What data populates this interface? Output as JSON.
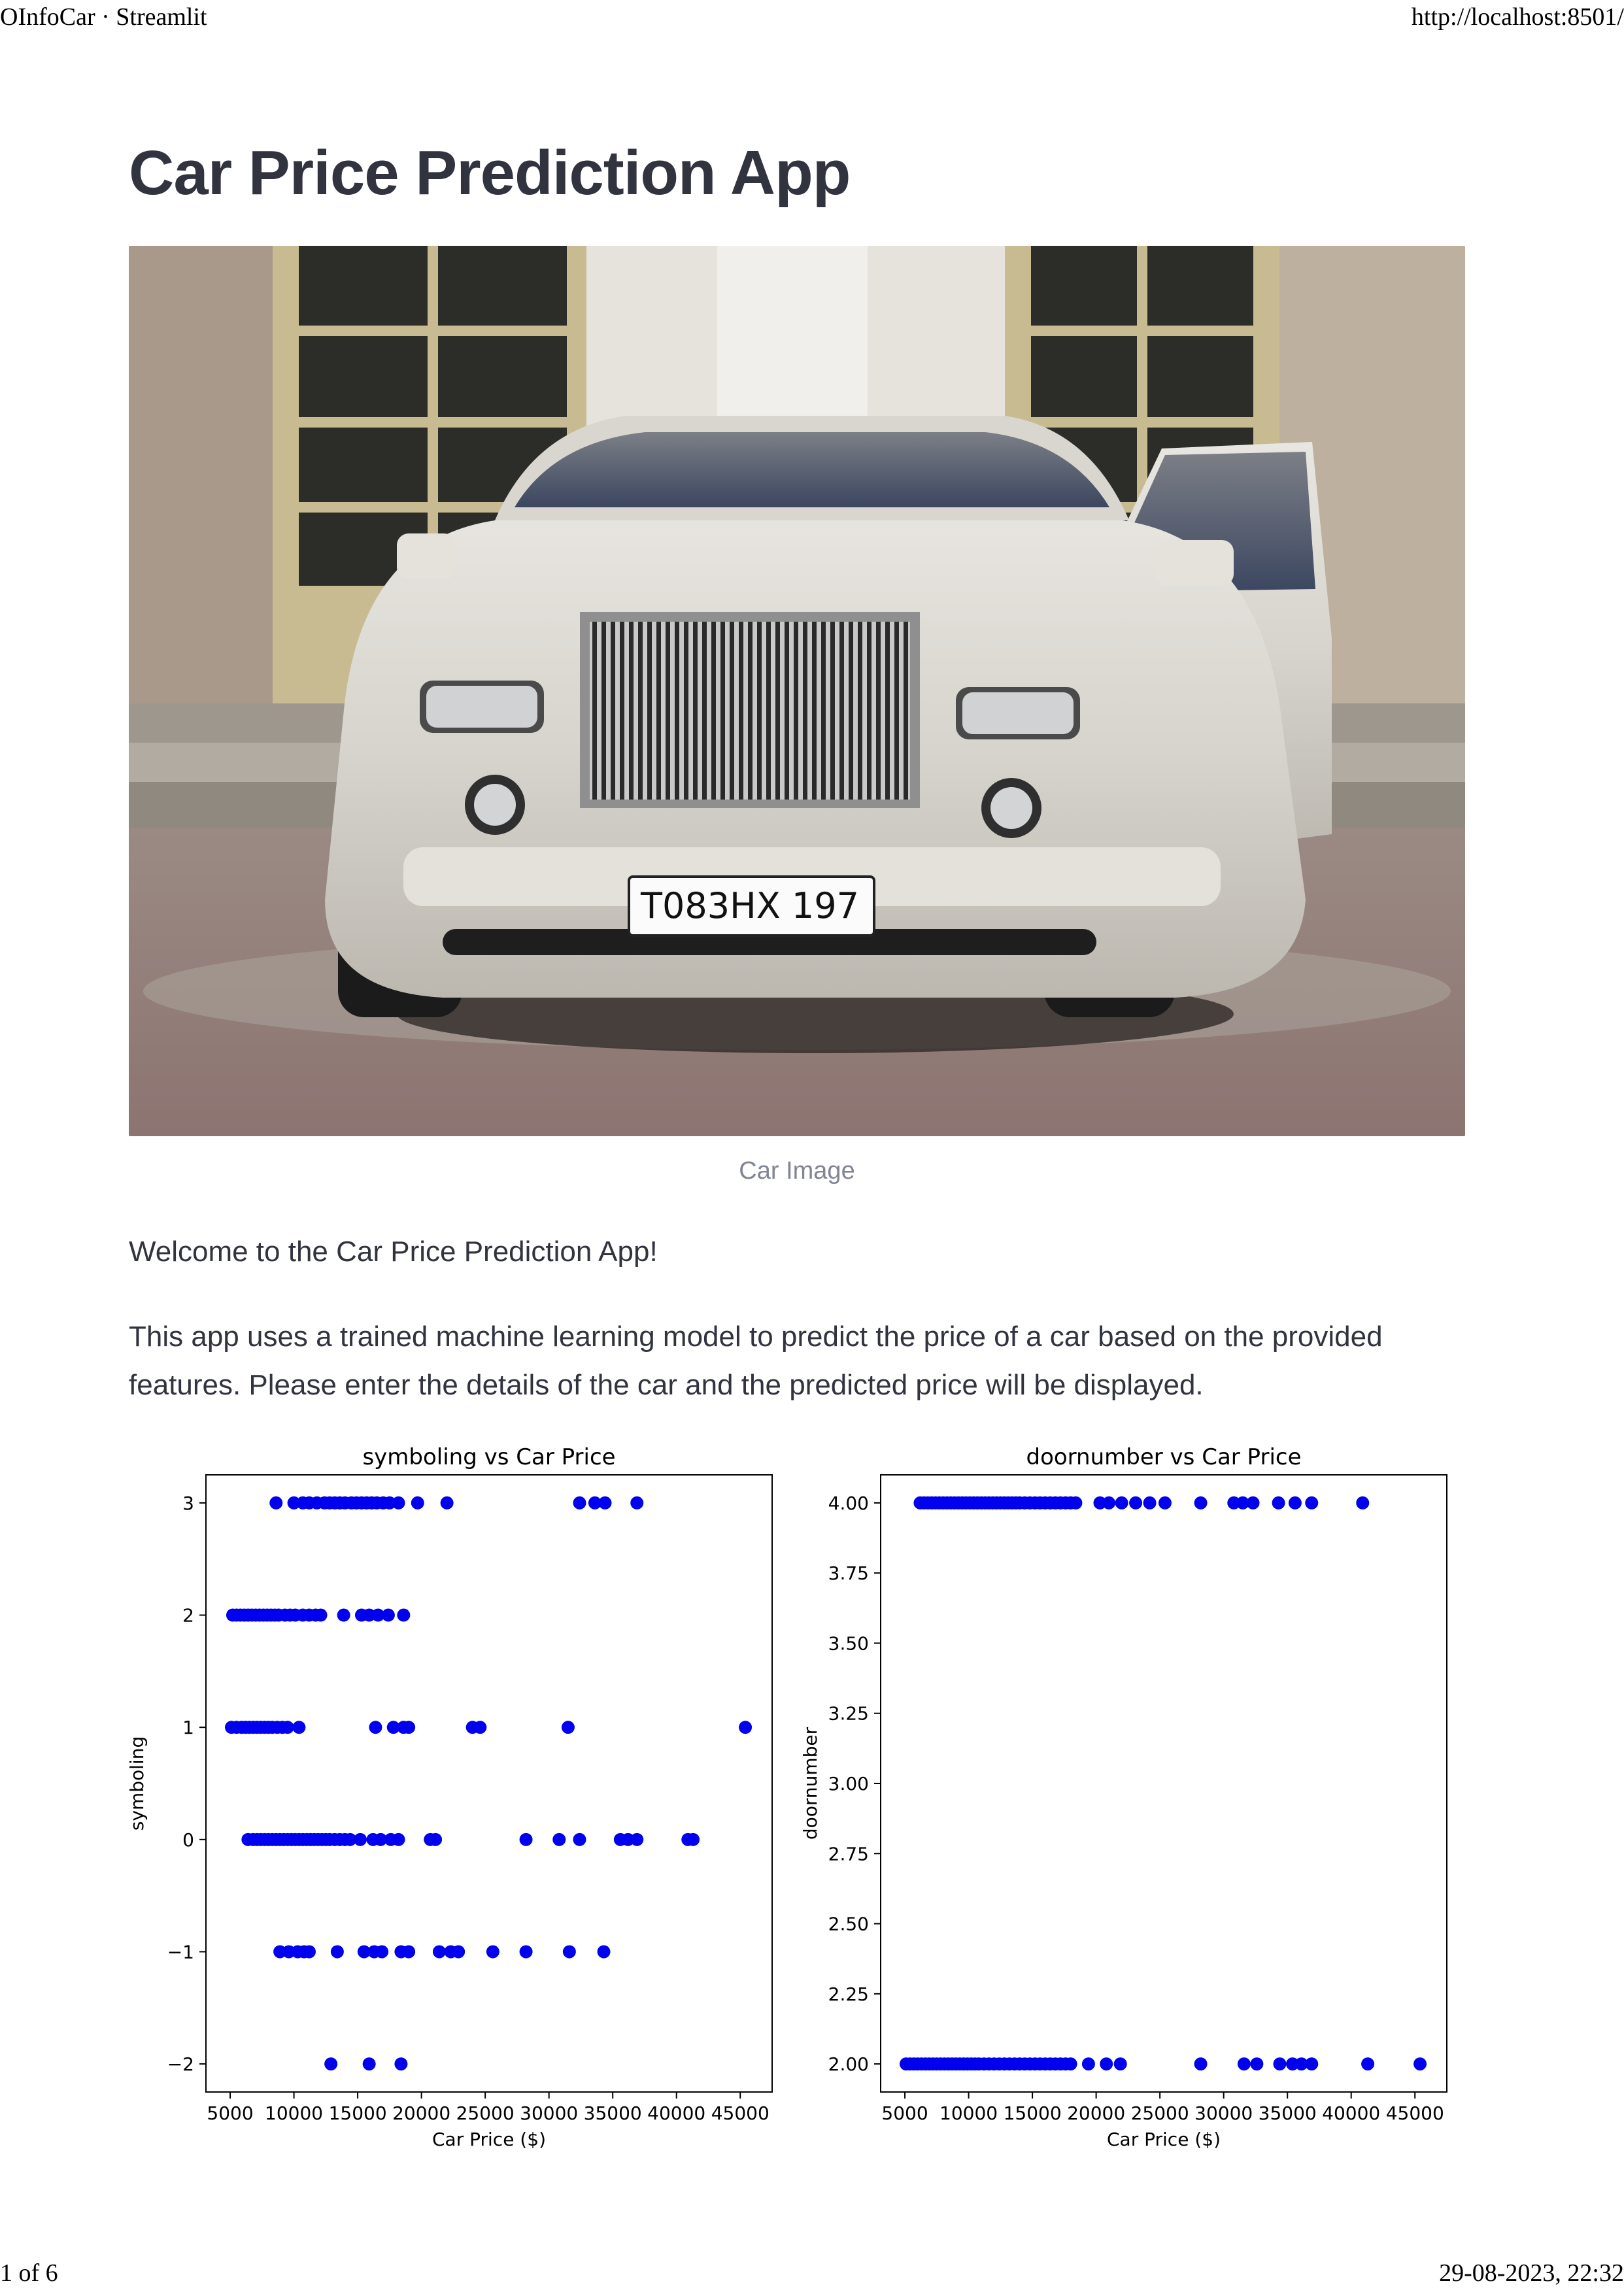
{
  "print_header": {
    "title": "OInfoCar · Streamlit",
    "url": "http://localhost:8501/"
  },
  "print_footer": {
    "page": "1 of 6",
    "datetime": "29-08-2023, 22:32"
  },
  "app": {
    "title": "Car Price Prediction App",
    "image_caption": "Car Image",
    "license_plate": "Т083НХ 197",
    "welcome": "Welcome to the Car Price Prediction App!",
    "description": "This app uses a trained machine learning model to predict the price of a car based on the provided features. Please enter the details of the car and the predicted price will be displayed."
  },
  "colors": {
    "point": "#0000ee",
    "text": "#31333f",
    "caption": "#808495"
  },
  "chart_data": [
    {
      "type": "scatter",
      "title": "symboling vs Car Price",
      "xlabel": "Car Price ($)",
      "ylabel": "symboling",
      "xlim": [
        3100,
        47500
      ],
      "ylim": [
        -2.25,
        3.25
      ],
      "xticks": [
        5000,
        10000,
        15000,
        20000,
        25000,
        30000,
        35000,
        40000,
        45000
      ],
      "xticklabels": [
        "5000",
        "10000",
        "15000",
        "20000",
        "25000",
        "30000",
        "35000",
        "40000",
        "45000"
      ],
      "yticks": [
        -2,
        -1,
        0,
        1,
        2,
        3
      ],
      "yticklabels": [
        "−2",
        "−1",
        "0",
        "1",
        "2",
        "3"
      ],
      "grid": false,
      "points": [
        [
          8600,
          3
        ],
        [
          10000,
          3
        ],
        [
          10700,
          3
        ],
        [
          11200,
          3
        ],
        [
          11800,
          3
        ],
        [
          12400,
          3
        ],
        [
          12800,
          3
        ],
        [
          13200,
          3
        ],
        [
          13600,
          3
        ],
        [
          14000,
          3
        ],
        [
          14500,
          3
        ],
        [
          14900,
          3
        ],
        [
          15300,
          3
        ],
        [
          15700,
          3
        ],
        [
          16100,
          3
        ],
        [
          16500,
          3
        ],
        [
          17000,
          3
        ],
        [
          17500,
          3
        ],
        [
          18200,
          3
        ],
        [
          19700,
          3
        ],
        [
          22000,
          3
        ],
        [
          32400,
          3
        ],
        [
          33600,
          3
        ],
        [
          34400,
          3
        ],
        [
          36900,
          3
        ],
        [
          5200,
          2
        ],
        [
          5500,
          2
        ],
        [
          5800,
          2
        ],
        [
          6100,
          2
        ],
        [
          6400,
          2
        ],
        [
          6700,
          2
        ],
        [
          7000,
          2
        ],
        [
          7300,
          2
        ],
        [
          7600,
          2
        ],
        [
          7900,
          2
        ],
        [
          8200,
          2
        ],
        [
          8500,
          2
        ],
        [
          8800,
          2
        ],
        [
          9300,
          2
        ],
        [
          9700,
          2
        ],
        [
          10100,
          2
        ],
        [
          10700,
          2
        ],
        [
          11200,
          2
        ],
        [
          11700,
          2
        ],
        [
          12100,
          2
        ],
        [
          13900,
          2
        ],
        [
          15300,
          2
        ],
        [
          15900,
          2
        ],
        [
          16600,
          2
        ],
        [
          17400,
          2
        ],
        [
          18600,
          2
        ],
        [
          5100,
          1
        ],
        [
          5500,
          1
        ],
        [
          5900,
          1
        ],
        [
          6200,
          1
        ],
        [
          6500,
          1
        ],
        [
          6800,
          1
        ],
        [
          7100,
          1
        ],
        [
          7400,
          1
        ],
        [
          7700,
          1
        ],
        [
          8000,
          1
        ],
        [
          8300,
          1
        ],
        [
          8700,
          1
        ],
        [
          9100,
          1
        ],
        [
          9500,
          1
        ],
        [
          10400,
          1
        ],
        [
          16400,
          1
        ],
        [
          17800,
          1
        ],
        [
          18600,
          1
        ],
        [
          19000,
          1
        ],
        [
          24000,
          1
        ],
        [
          24600,
          1
        ],
        [
          31500,
          1
        ],
        [
          45400,
          1
        ],
        [
          6400,
          0
        ],
        [
          6800,
          0
        ],
        [
          7100,
          0
        ],
        [
          7400,
          0
        ],
        [
          7700,
          0
        ],
        [
          8000,
          0
        ],
        [
          8300,
          0
        ],
        [
          8600,
          0
        ],
        [
          8900,
          0
        ],
        [
          9200,
          0
        ],
        [
          9500,
          0
        ],
        [
          9800,
          0
        ],
        [
          10100,
          0
        ],
        [
          10400,
          0
        ],
        [
          10700,
          0
        ],
        [
          11000,
          0
        ],
        [
          11300,
          0
        ],
        [
          11600,
          0
        ],
        [
          11900,
          0
        ],
        [
          12200,
          0
        ],
        [
          12500,
          0
        ],
        [
          12800,
          0
        ],
        [
          13200,
          0
        ],
        [
          13600,
          0
        ],
        [
          14000,
          0
        ],
        [
          14400,
          0
        ],
        [
          15200,
          0
        ],
        [
          16200,
          0
        ],
        [
          16800,
          0
        ],
        [
          17600,
          0
        ],
        [
          18200,
          0
        ],
        [
          20700,
          0
        ],
        [
          21100,
          0
        ],
        [
          28200,
          0
        ],
        [
          30800,
          0
        ],
        [
          32400,
          0
        ],
        [
          35600,
          0
        ],
        [
          36200,
          0
        ],
        [
          36900,
          0
        ],
        [
          40900,
          0
        ],
        [
          41300,
          0
        ],
        [
          8900,
          -1
        ],
        [
          9600,
          -1
        ],
        [
          10300,
          -1
        ],
        [
          10800,
          -1
        ],
        [
          11200,
          -1
        ],
        [
          13400,
          -1
        ],
        [
          15500,
          -1
        ],
        [
          16300,
          -1
        ],
        [
          16900,
          -1
        ],
        [
          18400,
          -1
        ],
        [
          19000,
          -1
        ],
        [
          21400,
          -1
        ],
        [
          22300,
          -1
        ],
        [
          22900,
          -1
        ],
        [
          25600,
          -1
        ],
        [
          28200,
          -1
        ],
        [
          31600,
          -1
        ],
        [
          34300,
          -1
        ],
        [
          12900,
          -2
        ],
        [
          15900,
          -2
        ],
        [
          18400,
          -2
        ]
      ]
    },
    {
      "type": "scatter",
      "title": "doornumber vs Car Price",
      "xlabel": "Car Price ($)",
      "ylabel": "doornumber",
      "xlim": [
        3100,
        47500
      ],
      "ylim": [
        1.9,
        4.1
      ],
      "xticks": [
        5000,
        10000,
        15000,
        20000,
        25000,
        30000,
        35000,
        40000,
        45000
      ],
      "xticklabels": [
        "5000",
        "10000",
        "15000",
        "20000",
        "25000",
        "30000",
        "35000",
        "40000",
        "45000"
      ],
      "yticks": [
        2.0,
        2.25,
        2.5,
        2.75,
        3.0,
        3.25,
        3.5,
        3.75,
        4.0
      ],
      "yticklabels": [
        "2.00",
        "2.25",
        "2.50",
        "2.75",
        "3.00",
        "3.25",
        "3.50",
        "3.75",
        "4.00"
      ],
      "grid": false,
      "points": [
        [
          6200,
          4
        ],
        [
          6500,
          4
        ],
        [
          6800,
          4
        ],
        [
          7100,
          4
        ],
        [
          7400,
          4
        ],
        [
          7700,
          4
        ],
        [
          8000,
          4
        ],
        [
          8300,
          4
        ],
        [
          8600,
          4
        ],
        [
          8900,
          4
        ],
        [
          9200,
          4
        ],
        [
          9500,
          4
        ],
        [
          9800,
          4
        ],
        [
          10100,
          4
        ],
        [
          10400,
          4
        ],
        [
          10700,
          4
        ],
        [
          11000,
          4
        ],
        [
          11300,
          4
        ],
        [
          11600,
          4
        ],
        [
          11900,
          4
        ],
        [
          12200,
          4
        ],
        [
          12500,
          4
        ],
        [
          12800,
          4
        ],
        [
          13100,
          4
        ],
        [
          13400,
          4
        ],
        [
          13700,
          4
        ],
        [
          14000,
          4
        ],
        [
          14400,
          4
        ],
        [
          14800,
          4
        ],
        [
          15200,
          4
        ],
        [
          15600,
          4
        ],
        [
          16000,
          4
        ],
        [
          16400,
          4
        ],
        [
          16800,
          4
        ],
        [
          17200,
          4
        ],
        [
          17600,
          4
        ],
        [
          18000,
          4
        ],
        [
          18400,
          4
        ],
        [
          20300,
          4
        ],
        [
          21000,
          4
        ],
        [
          22000,
          4
        ],
        [
          23100,
          4
        ],
        [
          24200,
          4
        ],
        [
          25400,
          4
        ],
        [
          28200,
          4
        ],
        [
          30800,
          4
        ],
        [
          31500,
          4
        ],
        [
          32300,
          4
        ],
        [
          34300,
          4
        ],
        [
          35600,
          4
        ],
        [
          36900,
          4
        ],
        [
          40900,
          4
        ],
        [
          5100,
          2
        ],
        [
          5400,
          2
        ],
        [
          5700,
          2
        ],
        [
          6000,
          2
        ],
        [
          6300,
          2
        ],
        [
          6600,
          2
        ],
        [
          6900,
          2
        ],
        [
          7200,
          2
        ],
        [
          7500,
          2
        ],
        [
          7800,
          2
        ],
        [
          8100,
          2
        ],
        [
          8400,
          2
        ],
        [
          8700,
          2
        ],
        [
          9000,
          2
        ],
        [
          9300,
          2
        ],
        [
          9600,
          2
        ],
        [
          9900,
          2
        ],
        [
          10200,
          2
        ],
        [
          10500,
          2
        ],
        [
          10800,
          2
        ],
        [
          11200,
          2
        ],
        [
          11600,
          2
        ],
        [
          12000,
          2
        ],
        [
          12400,
          2
        ],
        [
          12800,
          2
        ],
        [
          13200,
          2
        ],
        [
          13600,
          2
        ],
        [
          14000,
          2
        ],
        [
          14400,
          2
        ],
        [
          14800,
          2
        ],
        [
          15200,
          2
        ],
        [
          15600,
          2
        ],
        [
          16000,
          2
        ],
        [
          16400,
          2
        ],
        [
          16800,
          2
        ],
        [
          17200,
          2
        ],
        [
          17600,
          2
        ],
        [
          18000,
          2
        ],
        [
          19400,
          2
        ],
        [
          20800,
          2
        ],
        [
          21900,
          2
        ],
        [
          28200,
          2
        ],
        [
          31600,
          2
        ],
        [
          32600,
          2
        ],
        [
          34400,
          2
        ],
        [
          35400,
          2
        ],
        [
          36100,
          2
        ],
        [
          36900,
          2
        ],
        [
          41300,
          2
        ],
        [
          45400,
          2
        ]
      ]
    }
  ]
}
